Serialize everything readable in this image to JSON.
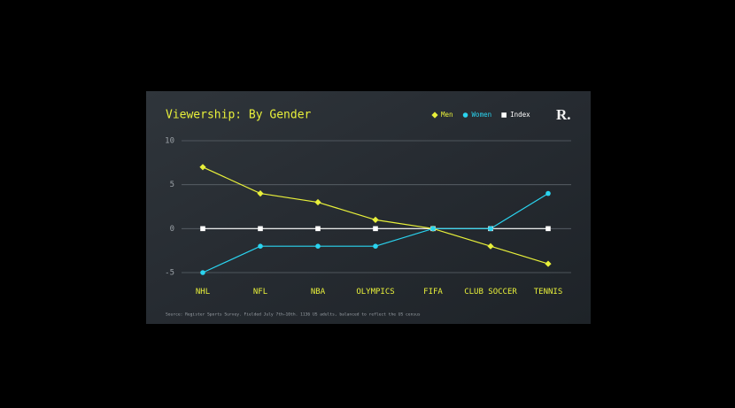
{
  "chart_data": {
    "type": "line",
    "title": "Viewership: By Gender",
    "logo": "R.",
    "source": "Source: Register Sports Survey. Fielded July 7th–10th. 1136 US adults, balanced to reflect the US census",
    "categories": [
      "NHL",
      "NFL",
      "NBA",
      "OLYMPICS",
      "FIFA",
      "CLUB SOCCER",
      "TENNIS"
    ],
    "series": [
      {
        "name": "Men",
        "color": "#e8f03a",
        "marker": "diamond",
        "values": [
          7,
          4,
          3,
          1,
          0,
          -2,
          -4
        ]
      },
      {
        "name": "Women",
        "color": "#2ad4f0",
        "marker": "circle",
        "values": [
          -5,
          -2,
          -2,
          -2,
          0,
          0,
          4
        ]
      },
      {
        "name": "Index",
        "color": "#ffffff",
        "marker": "square",
        "values": [
          0,
          0,
          0,
          0,
          0,
          0,
          0
        ]
      }
    ],
    "ylim": [
      -5,
      10
    ],
    "yticks": [
      -5,
      0,
      5,
      10
    ],
    "grid": true,
    "legend": "top-right"
  }
}
